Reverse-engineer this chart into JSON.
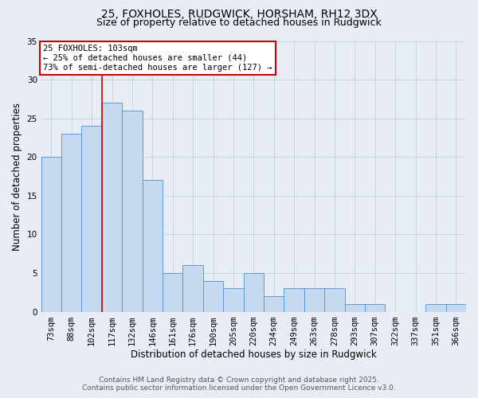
{
  "title": "25, FOXHOLES, RUDGWICK, HORSHAM, RH12 3DX",
  "subtitle": "Size of property relative to detached houses in Rudgwick",
  "xlabel": "Distribution of detached houses by size in Rudgwick",
  "ylabel": "Number of detached properties",
  "categories": [
    "73sqm",
    "88sqm",
    "102sqm",
    "117sqm",
    "132sqm",
    "146sqm",
    "161sqm",
    "176sqm",
    "190sqm",
    "205sqm",
    "220sqm",
    "234sqm",
    "249sqm",
    "263sqm",
    "278sqm",
    "293sqm",
    "307sqm",
    "322sqm",
    "337sqm",
    "351sqm",
    "366sqm"
  ],
  "values": [
    20,
    23,
    24,
    27,
    26,
    17,
    5,
    6,
    4,
    3,
    5,
    2,
    3,
    3,
    3,
    1,
    1,
    0,
    0,
    1,
    1
  ],
  "bar_color": "#c6d9f1",
  "bar_edge_color": "#5b9bd5",
  "highlight_index": 2,
  "annotation_text": "25 FOXHOLES: 103sqm\n← 25% of detached houses are smaller (44)\n73% of semi-detached houses are larger (127) →",
  "annotation_box_color": "#ffffff",
  "annotation_box_edge": "#cc0000",
  "vline_color": "#cc0000",
  "ylim": [
    0,
    35
  ],
  "yticks": [
    0,
    5,
    10,
    15,
    20,
    25,
    30,
    35
  ],
  "grid_color": "#c8d4e8",
  "background_color": "#e8edf5",
  "footer_line1": "Contains HM Land Registry data © Crown copyright and database right 2025.",
  "footer_line2": "Contains public sector information licensed under the Open Government Licence v3.0.",
  "title_fontsize": 10,
  "subtitle_fontsize": 9,
  "axis_label_fontsize": 8.5,
  "tick_fontsize": 7.5,
  "footer_fontsize": 6.5
}
